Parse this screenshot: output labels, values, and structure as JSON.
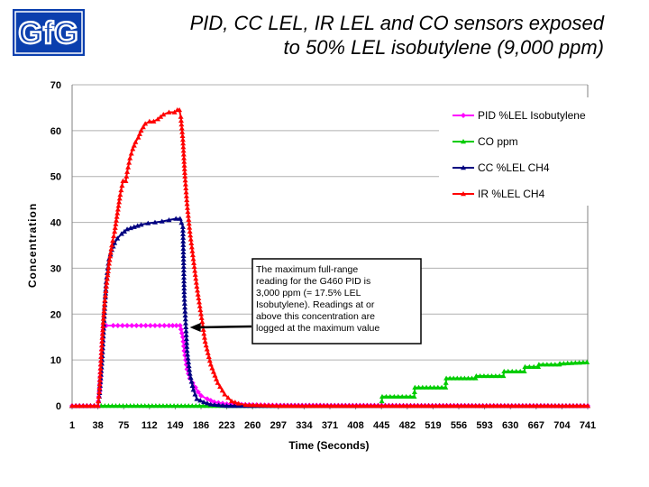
{
  "header": {
    "logo_text": "GfG",
    "title_line1": "PID, CC LEL, IR LEL and CO sensors exposed",
    "title_line2": "to 50% LEL isobutylene (9,000 ppm)"
  },
  "colors": {
    "pid": "#ff00ff",
    "co": "#00cc00",
    "cc": "#000080",
    "ir": "#ff0000",
    "logo": "#0b3fae"
  },
  "chart_data": {
    "type": "line",
    "title": "PID, CC LEL, IR LEL and CO sensors exposed to 50% LEL isobutylene (9,000 ppm)",
    "xlabel": "Time (Seconds)",
    "ylabel": "Concentration",
    "xlim": [
      1,
      741
    ],
    "ylim": [
      0,
      70
    ],
    "yticks": [
      0,
      10,
      20,
      30,
      40,
      50,
      60,
      70
    ],
    "xticks": [
      1,
      38,
      75,
      112,
      149,
      186,
      223,
      260,
      297,
      334,
      371,
      408,
      445,
      482,
      519,
      556,
      593,
      630,
      667,
      704,
      741
    ],
    "grid": "horizontal",
    "legend_position": "top-right",
    "annotation": {
      "lines": [
        "The maximum full-range",
        "reading for the G460 PID is",
        "3,000 ppm (= 17.5% LEL",
        "Isobutylene).  Readings at or",
        "above this concentration are",
        "logged at the maximum value"
      ],
      "arrow_target": [
        170,
        17.5
      ]
    },
    "series": [
      {
        "name": "PID %LEL Isobutylene",
        "color": "#ff00ff",
        "marker": "diamond",
        "x": [
          1,
          38,
          40,
          42,
          44,
          46,
          48,
          50,
          60,
          80,
          100,
          120,
          140,
          156,
          160,
          162,
          164,
          166,
          168,
          170,
          174,
          178,
          182,
          186,
          195,
          205,
          223,
          260,
          300,
          741
        ],
        "y": [
          0,
          0,
          3,
          8,
          13,
          17.5,
          17.5,
          17.5,
          17.5,
          17.5,
          17.5,
          17.5,
          17.5,
          17.5,
          15,
          12,
          10,
          8,
          7,
          6,
          5,
          4,
          3,
          2.2,
          1.5,
          0.8,
          0.4,
          0.2,
          0.1,
          0
        ]
      },
      {
        "name": "CO ppm",
        "color": "#00cc00",
        "marker": "triangle",
        "x": [
          1,
          445,
          446,
          492,
          493,
          537,
          538,
          580,
          581,
          620,
          621,
          650,
          651,
          670,
          671,
          700,
          701,
          740
        ],
        "y": [
          0,
          0,
          2,
          2,
          4,
          4,
          6,
          6,
          6.5,
          6.5,
          7.5,
          7.5,
          8.5,
          8.5,
          9,
          9,
          9.2,
          9.5
        ]
      },
      {
        "name": "CC %LEL CH4",
        "color": "#000080",
        "marker": "triangle",
        "x": [
          1,
          38,
          40,
          42,
          44,
          46,
          48,
          50,
          52,
          54,
          58,
          62,
          66,
          72,
          80,
          90,
          100,
          110,
          120,
          130,
          140,
          150,
          156,
          160,
          162,
          164,
          166,
          170,
          175,
          180,
          190,
          200,
          223,
          300,
          741
        ],
        "y": [
          0,
          0,
          2,
          6,
          10,
          16,
          22,
          27,
          30,
          32,
          34,
          35.5,
          36.5,
          37.5,
          38.5,
          39,
          39.5,
          39.8,
          40,
          40.2,
          40.5,
          40.8,
          40.8,
          39,
          24,
          18,
          12,
          7,
          3.5,
          1.5,
          0.8,
          0.3,
          0,
          0,
          0
        ]
      },
      {
        "name": "IR %LEL CH4",
        "color": "#ff0000",
        "marker": "triangle",
        "x": [
          1,
          38,
          40,
          42,
          44,
          46,
          48,
          50,
          54,
          58,
          62,
          66,
          70,
          74,
          78,
          80,
          84,
          88,
          92,
          96,
          100,
          106,
          112,
          118,
          124,
          132,
          140,
          148,
          152,
          155,
          157,
          160,
          163,
          166,
          170,
          175,
          180,
          186,
          192,
          200,
          210,
          220,
          230,
          240,
          250,
          300,
          741
        ],
        "y": [
          0,
          0,
          3,
          9,
          14,
          19,
          23,
          26,
          31,
          35,
          38,
          42,
          46,
          49,
          49,
          51,
          54,
          56,
          57.5,
          58.5,
          60,
          61.5,
          62,
          62,
          62.5,
          63.5,
          64,
          64,
          64.5,
          64.5,
          63,
          58,
          50,
          44,
          38,
          32,
          26,
          20,
          14,
          9,
          5,
          2.5,
          1,
          0.5,
          0.2,
          0,
          0
        ]
      }
    ]
  }
}
